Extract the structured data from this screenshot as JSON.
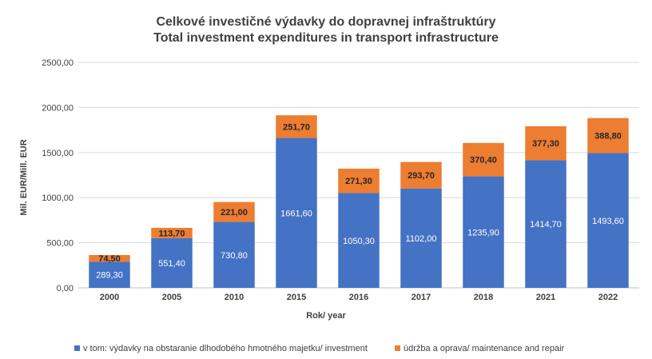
{
  "chart_data": {
    "type": "bar",
    "stacked": true,
    "title": "Celkové investičné výdavky do dopravnej infraštruktúry",
    "subtitle": "Total investment expenditures in transport infrastructure",
    "xlabel": "Rok/ year",
    "ylabel": "Mil. EUR/Mill. EUR",
    "ylim": [
      0,
      2500
    ],
    "yticks": [
      "0,00",
      "500,00",
      "1000,00",
      "1500,00",
      "2000,00",
      "2500,00"
    ],
    "ytick_values": [
      0,
      500,
      1000,
      1500,
      2000,
      2500
    ],
    "grid": true,
    "legend_position": "bottom",
    "categories": [
      "2000",
      "2005",
      "2010",
      "2015",
      "2016",
      "2017",
      "2018",
      "2021",
      "2022"
    ],
    "series": [
      {
        "name": "v tom: výdavky na obstaranie dlhodobého hmotného majetku/ investment",
        "color": "#4472C4",
        "values": [
          289.3,
          551.4,
          730.8,
          1661.6,
          1050.3,
          1102.0,
          1235.9,
          1414.7,
          1493.6
        ],
        "labels": [
          "289,30",
          "551,40",
          "730,80",
          "1661,60",
          "1050,30",
          "1102,00",
          "1235,90",
          "1414,70",
          "1493,60"
        ]
      },
      {
        "name": "údržba a oprava/ maintenance and repair",
        "color": "#ED7D31",
        "values": [
          74.5,
          113.7,
          221.0,
          251.7,
          271.3,
          293.7,
          370.4,
          377.3,
          388.8
        ],
        "labels": [
          "74,50",
          "113,70",
          "221,00",
          "251,70",
          "271,30",
          "293,70",
          "370,40",
          "377,30",
          "388,80"
        ]
      }
    ]
  }
}
